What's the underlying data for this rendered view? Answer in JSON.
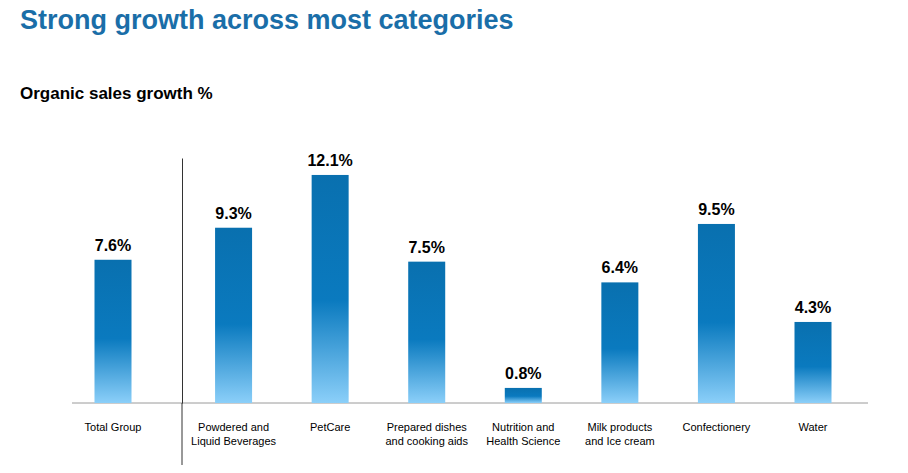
{
  "chart_data": {
    "type": "bar",
    "title": "Strong growth across most categories",
    "subtitle": "Organic sales growth %",
    "categories": [
      "Total Group",
      "Powdered and Liquid Beverages",
      "PetCare",
      "Prepared dishes and cooking aids",
      "Nutrition and Health Science",
      "Milk products and Ice cream",
      "Confectionery",
      "Water"
    ],
    "values": [
      7.6,
      9.3,
      12.1,
      7.5,
      0.8,
      6.4,
      9.5,
      4.3
    ],
    "value_labels": [
      "7.6%",
      "9.3%",
      "12.1%",
      "7.5%",
      "0.8%",
      "6.4%",
      "9.5%",
      "4.3%"
    ],
    "color": "#0a7abf",
    "ylim": [
      0,
      13
    ],
    "yticks": [],
    "grid": false,
    "data_labels": true,
    "tick_labels": "x"
  }
}
